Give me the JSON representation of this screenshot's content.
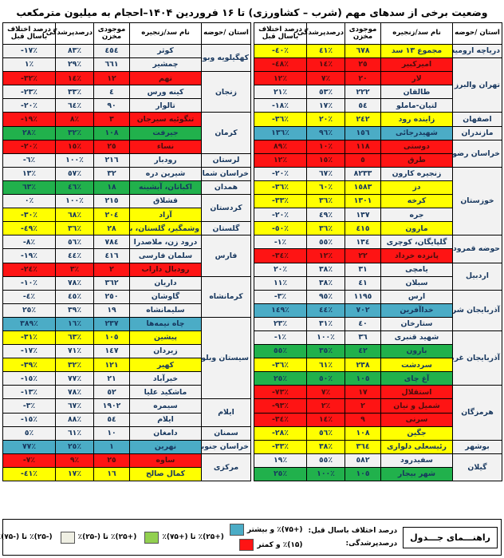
{
  "title": "وضعیت برخی از سدهای مهم (شرب – کشاورزی) تا ۱۶ فروردین ۱۴۰۴–احجام به میلیون مترمکعب",
  "columns": {
    "province": "استان /حوضه",
    "name": "نام سد/زنجیره",
    "volume": "موجودی مخزن",
    "fill": "درصدپرشدگی",
    "diff": "درصد اختلاف باسال قبل"
  },
  "colors": {
    "red": "#fe1414",
    "yellow": "#ffff00",
    "green": "#21b14c",
    "blue": "#4bacc6",
    "white": "#f2f2f2",
    "orange": "#e36c0a",
    "legend_green": "#92d050",
    "legend_white": "#efefe3",
    "text": "#17375e"
  },
  "tables": {
    "right": [
      {
        "province": "دریاچه ارومیه",
        "rows": [
          [
            "مجموع ١٣ سد",
            "٦٧٨",
            "٤١٪",
            "-٤٠٪",
            "yellow"
          ]
        ]
      },
      {
        "province": "تهران والبرز",
        "rows": [
          [
            "امیرکبیر",
            "٢٥",
            "١٤٪",
            "-٤٨٪",
            "red"
          ],
          [
            "لار",
            "٢٠",
            "٧٪",
            "١٢٪",
            "red"
          ],
          [
            "طالقان",
            "٢٢٢",
            "٥٣٪",
            "٢١٪",
            "white"
          ],
          [
            "لتیان-ماملو",
            "٥٤",
            "١٧٪",
            "-١٨٪",
            "white"
          ]
        ]
      },
      {
        "province": "اصفهان",
        "rows": [
          [
            "زاینده رود",
            "٢٤٢",
            "٢٠٪",
            "-٣٦٪",
            "yellow"
          ]
        ]
      },
      {
        "province": "مازندران",
        "rows": [
          [
            "شهیدرجائی",
            "١٥٦",
            "٩٦٪",
            "١٣٦٪",
            "blue"
          ]
        ]
      },
      {
        "province": "خراسان رضوی",
        "rows": [
          [
            "دوستی",
            "١١٨",
            "١٠٪",
            "٨٩٪",
            "red"
          ],
          [
            "طرق",
            "٥",
            "١٥٪",
            "١٢٪",
            "red"
          ]
        ]
      },
      {
        "province": "خوزستان",
        "rows": [
          [
            "زنجیره کارون",
            "٨٢٣٣",
            "٦٧٪",
            "-٢٠٪",
            "white"
          ],
          [
            "دز",
            "١٥٨٣",
            "٦٠٪",
            "-٣٦٪",
            "yellow"
          ],
          [
            "کرخه",
            "١٣٠١",
            "٣٦٪",
            "-٣٣٪",
            "yellow"
          ],
          [
            "جره",
            "١٣٧",
            "٤٩٪",
            "-٢٠٪",
            "white"
          ],
          [
            "مارون",
            "٤١٥",
            "٣٦٪",
            "-٥٠٪",
            "yellow"
          ]
        ]
      },
      {
        "province": "حوضه قمرود",
        "rows": [
          [
            "گلپایگان، کوچری",
            "١٣٤",
            "٥٥٪",
            "-١٪",
            "white"
          ],
          [
            "پانزده خرداد",
            "٢٢",
            "١٢٪",
            "-٣٤٪",
            "red"
          ]
        ]
      },
      {
        "province": "اردبیل",
        "rows": [
          [
            "یامچی",
            "٣١",
            "٣٨٪",
            "٢٠٪",
            "white"
          ],
          [
            "سبلان",
            "٤١",
            "٣٨٪",
            "١١٪",
            "white"
          ]
        ]
      },
      {
        "province": "آذربایجان شرقی",
        "rows": [
          [
            "ارس",
            "١١٩٥",
            "٩٥٪",
            "-٣٪",
            "white"
          ],
          [
            "خداآفرین",
            "٧٠٢",
            "٤٤٪",
            "١٤٩٪",
            "blue"
          ],
          [
            "ستارخان",
            "٤٠",
            "٣١٪",
            "٢٣٪",
            "white"
          ]
        ]
      },
      {
        "province": "آذربایجان غربی",
        "rows": [
          [
            "شهید قنبری",
            "٣٦",
            "١٠٠٪",
            "-١٪",
            "white"
          ],
          [
            "بارون",
            "٤٢",
            "٣٥٪",
            "٥٥٪",
            "green"
          ],
          [
            "سردشت",
            "٢٣٨",
            "٦١٪",
            "-٣٦٪",
            "yellow"
          ],
          [
            "آغ چای",
            "١٠٥",
            "٥٠٪",
            "٢٥٪",
            "green"
          ]
        ]
      },
      {
        "province": "هرمزگان",
        "rows": [
          [
            "استقلال",
            "١٧",
            "٧٪",
            "-٧٣٪",
            "red"
          ],
          [
            "شمیل و نیان",
            "٢",
            "٢٪",
            "-٩٣٪",
            "red"
          ],
          [
            "سرنی",
            "٩",
            "١٤٪",
            "-٣٤٪",
            "red"
          ],
          [
            "جگین",
            "١٠٨",
            "٥٦٪",
            "-٢٨٪",
            "yellow"
          ]
        ]
      },
      {
        "province": "بوشهر",
        "rows": [
          [
            "رئیسعلی دلواری",
            "٣٦٤",
            "٣٨٪",
            "-٣٣٪",
            "yellow"
          ]
        ]
      },
      {
        "province": "گیلان",
        "rows": [
          [
            "سفیدرود",
            "٥٨٢",
            "٥٥٪",
            "١٩٪",
            "white"
          ],
          [
            "شهر بیجار",
            "١٠٥",
            "١٠٠٪",
            "٢٥٪",
            "green"
          ]
        ]
      }
    ],
    "left": [
      {
        "province": "کهگیلویه وبویراحمد",
        "rows": [
          [
            "کوثر",
            "٤٥٤",
            "٨٣٪",
            "-١٧٪",
            "white"
          ],
          [
            "چمشیر",
            "٦٦١",
            "٢٩٪",
            "١٪",
            "white"
          ]
        ]
      },
      {
        "province": "زنجان",
        "rows": [
          [
            "تهم",
            "١٢",
            "١٤٪",
            "-٣٢٪",
            "red"
          ],
          [
            "کینه ورس",
            "٤",
            "٣٣٪",
            "-٢٣٪",
            "white"
          ],
          [
            "تالوار",
            "٩٠",
            "٦٤٪",
            "-٢٠٪",
            "white"
          ]
        ]
      },
      {
        "province": "کرمان",
        "rows": [
          [
            "تنگوئیه سیرجان",
            "٣",
            "٨٪",
            "-١٩٪",
            "red"
          ],
          [
            "جیرفت",
            "١٠٨",
            "٣٢٪",
            "٢٨٪",
            "green"
          ],
          [
            "نساء",
            "٢٥",
            "١٥٪",
            "-٢٠٪",
            "red"
          ]
        ]
      },
      {
        "province": "لرستان",
        "rows": [
          [
            "رودبار",
            "٢١٦",
            "١٠٠٪",
            "-٦٪",
            "white"
          ]
        ]
      },
      {
        "province": "خراسان شمالی",
        "rows": [
          [
            "شیرین دره",
            "٣٢",
            "٥٧٪",
            "١٣٪",
            "white"
          ]
        ]
      },
      {
        "province": "همدان",
        "rows": [
          [
            "اکباتان، آبشینه",
            "١٨",
            "٤٦٪",
            "٦٣٪",
            "green"
          ]
        ]
      },
      {
        "province": "کردستان",
        "rows": [
          [
            "قشلاق",
            "٢١٥",
            "١٠٠٪",
            "٠٪",
            "white"
          ],
          [
            "آزاد",
            "٢٠٤",
            "٦٨٪",
            "-٣٠٪",
            "yellow"
          ]
        ]
      },
      {
        "province": "گلستان",
        "rows": [
          [
            "وشمگیر، گلستان، بوستان",
            "٢٨",
            "٣٦٪",
            "-٤٩٪",
            "yellow"
          ]
        ]
      },
      {
        "province": "فارس",
        "rows": [
          [
            "درود زن، ملاصدرا",
            "٧٨٤",
            "٥٦٪",
            "-٨٪",
            "white"
          ],
          [
            "سلمان فارسی",
            "٤١٦",
            "٤٤٪",
            "-١٩٪",
            "white"
          ],
          [
            "رودبال داراب",
            "٢",
            "٣٪",
            "-٢٤٪",
            "red"
          ]
        ]
      },
      {
        "province": "کرمانشاه",
        "rows": [
          [
            "داریان",
            "٣٦٢",
            "٧٨٪",
            "-١٠٪",
            "white"
          ],
          [
            "گاوشان",
            "٢٥٠",
            "٤٥٪",
            "-٤٪",
            "white"
          ],
          [
            "سلیمانشاه",
            "١٩",
            "٣٩٪",
            "٢٥٪",
            "white"
          ]
        ]
      },
      {
        "province": "سیستان وبلوچستان",
        "rows": [
          [
            "چاه نیمه‌ها",
            "٢٣٧",
            "١٦٪",
            "٣٨٩٪",
            "blue"
          ],
          [
            "پیشین",
            "١٠٥",
            "٦٣٪",
            "-٣١٪",
            "yellow"
          ],
          [
            "زیردان",
            "١٤٧",
            "٧١٪",
            "-١٧٪",
            "white"
          ],
          [
            "کهیر",
            "١٢١",
            "٣٢٪",
            "-٣٩٪",
            "yellow"
          ],
          [
            "خیرآباد",
            "٢١",
            "٧٧٪",
            "-١٥٪",
            "white"
          ],
          [
            "ماشکید علیا",
            "٥٢",
            "٧٨٪",
            "-١٣٪",
            "white"
          ]
        ]
      },
      {
        "province": "ایلام",
        "rows": [
          [
            "سیمره",
            "١٩٠٢",
            "٦٧٪",
            "-٣٪",
            "white"
          ],
          [
            "ایلام",
            "٥٤",
            "٨٨٪",
            "-١٥٪",
            "white"
          ]
        ]
      },
      {
        "province": "سمنان",
        "rows": [
          [
            "دامغان",
            "١٠",
            "٦١٪",
            "٥٪",
            "white"
          ]
        ]
      },
      {
        "province": "خراسان جنوبی",
        "rows": [
          [
            "نهرین",
            "١",
            "٢٥٪",
            "٧٧٪",
            "blue"
          ]
        ]
      },
      {
        "province": "مرکزی",
        "rows": [
          [
            "ساوه",
            "٢٥",
            "٩٪",
            "-٧٪",
            "red"
          ],
          [
            "کمال صالح",
            "١٦",
            "١٧٪",
            "-٤١٪",
            "yellow"
          ]
        ]
      }
    ]
  },
  "legend": {
    "title": "راهنـــمای جـــدول",
    "diff_label": "درصد اختلاف باسال قبل:",
    "fill_label": "درصدپرشدگی:",
    "diff_items": [
      {
        "text": "(+۷۵)٪ و بیشتر",
        "color": "#4bacc6",
        "name": "blue"
      },
      {
        "text": "(+۲۵)٪ تا (+۷۵)٪",
        "color": "#92d050",
        "name": "green"
      },
      {
        "text": "(+۲۵)٪ تا (-۲۵)٪",
        "color": "#efefe3",
        "name": "white"
      },
      {
        "text": "(-۲۵)٪ تا (-۷۵)٪",
        "color": "#ffff00",
        "name": "yellow"
      },
      {
        "text": "(-۷۵)٪ و کمتر",
        "color": "#e36c0a",
        "name": "orange"
      }
    ],
    "fill_item": {
      "text": "(۱۵)٪ و کمتر",
      "color": "#fe1414",
      "name": "red"
    }
  }
}
